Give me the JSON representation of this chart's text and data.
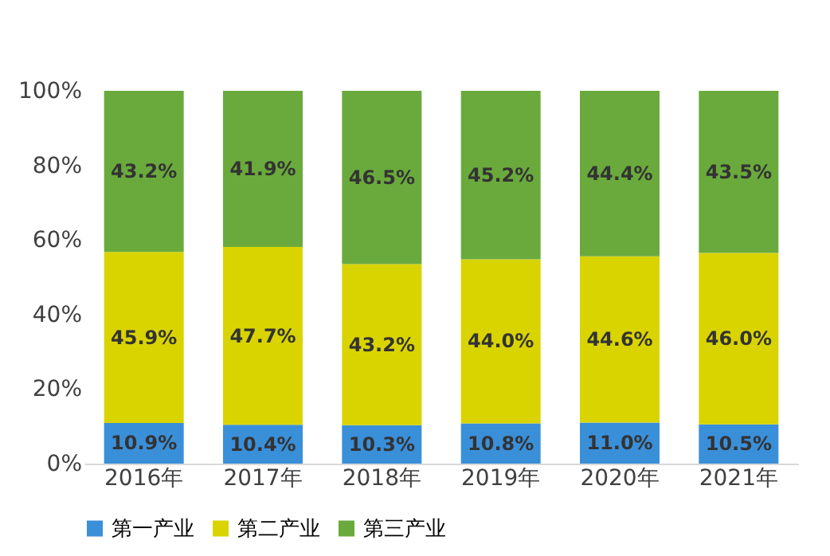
{
  "chart_data": {
    "type": "bar",
    "stacked": true,
    "categories": [
      "2016年",
      "2017年",
      "2018年",
      "2019年",
      "2020年",
      "2021年"
    ],
    "series": [
      {
        "name": "第一产业",
        "color": "#3a8fd9",
        "values": [
          10.9,
          10.4,
          10.3,
          10.8,
          11.0,
          10.5
        ],
        "value_labels": [
          "10.9%",
          "10.4%",
          "10.3%",
          "10.8%",
          "11.0%",
          "10.5%"
        ]
      },
      {
        "name": "第二产业",
        "color": "#d9d400",
        "values": [
          45.9,
          47.7,
          43.2,
          44.0,
          44.6,
          46.0
        ],
        "value_labels": [
          "45.9%",
          "47.7%",
          "43.2%",
          "44.0%",
          "44.6%",
          "46.0%"
        ]
      },
      {
        "name": "第三产业",
        "color": "#6aaa3c",
        "values": [
          43.2,
          41.9,
          46.5,
          45.2,
          44.4,
          43.5
        ],
        "value_labels": [
          "43.2%",
          "41.9%",
          "46.5%",
          "45.2%",
          "44.4%",
          "43.5%"
        ]
      }
    ],
    "ylim": [
      0,
      100
    ],
    "yticks": [
      {
        "value": 0,
        "label": "0%"
      },
      {
        "value": 20,
        "label": "20%"
      },
      {
        "value": 40,
        "label": "40%"
      },
      {
        "value": 60,
        "label": "60%"
      },
      {
        "value": 80,
        "label": "80%"
      },
      {
        "value": 100,
        "label": "100%"
      }
    ],
    "grid": false,
    "legend": "bottom"
  }
}
